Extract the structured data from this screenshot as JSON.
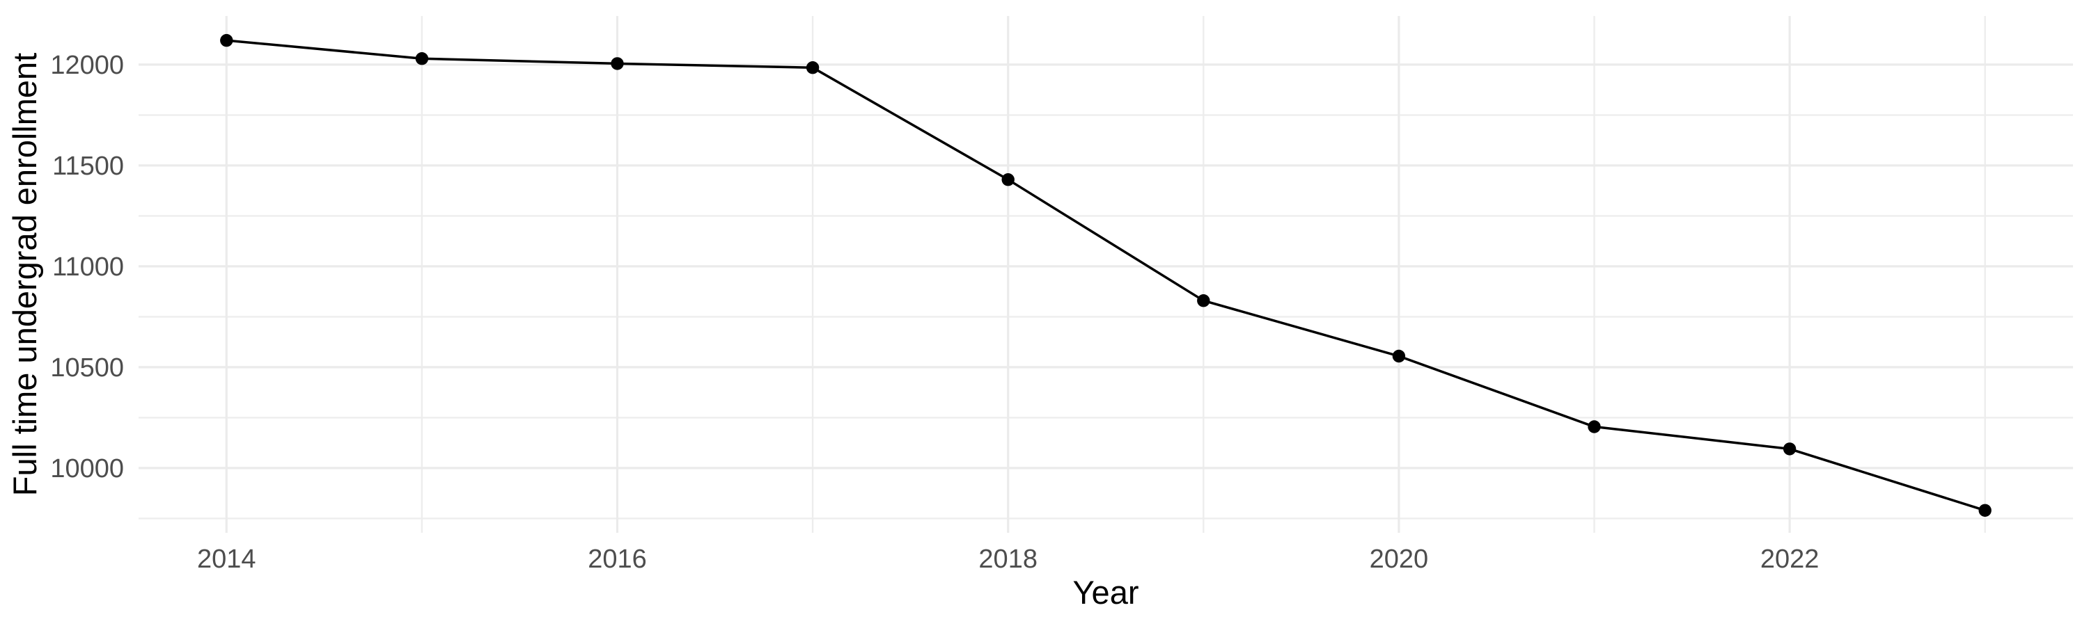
{
  "chart_data": {
    "type": "line",
    "title": "",
    "xlabel": "Year",
    "ylabel": "Full time undergrad enrollment",
    "series": [
      {
        "name": "Full time undergrad enrollment",
        "x": [
          2014,
          2015,
          2016,
          2017,
          2018,
          2019,
          2020,
          2021,
          2022,
          2023
        ],
        "values": [
          12120,
          12030,
          12005,
          11985,
          11430,
          10830,
          10555,
          10205,
          10095,
          9790
        ]
      }
    ],
    "x_ticks_major": [
      2014,
      2016,
      2018,
      2020,
      2022
    ],
    "x_ticks_minor": [
      2015,
      2017,
      2019,
      2021,
      2023
    ],
    "y_ticks_major": [
      10000,
      10500,
      11000,
      11500,
      12000
    ],
    "y_ticks_minor": [
      9750,
      10250,
      10750,
      11250,
      11750
    ],
    "xlim": [
      2013.55,
      2023.45
    ],
    "ylim": [
      9679,
      12241
    ],
    "grid": true,
    "legend": "none",
    "marker": "filled-circle",
    "colors": {
      "line": "#000000",
      "point": "#000000",
      "grid_major": "#EBEBEB",
      "grid_minor": "#EDEDED",
      "tick_label": "#4D4D4D",
      "axis_title": "#000000",
      "background": "#FFFFFF"
    }
  }
}
